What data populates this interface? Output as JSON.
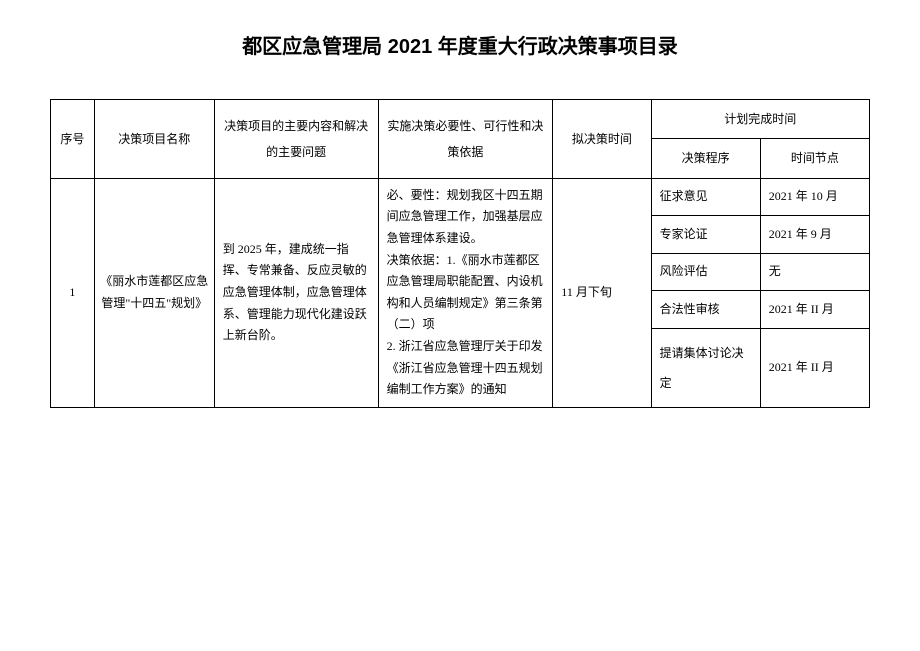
{
  "title": "都区应急管理局 2021 年度重大行政决策事项目录",
  "headers": {
    "seq": "序号",
    "name": "决策项目名称",
    "content": "决策项目的主要内容和解决的主要问题",
    "basis": "实施决策必要性、可行性和决策依据",
    "plan_time": "拟决策时间",
    "complete_time": "计划完成时间",
    "procedure": "决策程序",
    "time_node": "时间节点"
  },
  "row": {
    "seq": "1",
    "name": "《丽水市莲都区应急管理\"十四五\"规划》",
    "content": "到 2025 年，建成统一指挥、专常兼备、反应灵敏的应急管理体制，应急管理体系、管理能力现代化建设跃上新台阶。",
    "basis": "必、要性：规划我区十四五期间应急管理工作，加强基层应急管理体系建设。\n决策依据：1.《丽水市莲都区应急管理局职能配置、内设机构和人员编制规定》第三条第（二）项\n2. 浙江省应急管理厅关于印发《浙江省应急管理十四五规划编制工作方案》的通知",
    "plan_time": "11 月下旬",
    "steps": [
      {
        "proc": "征求意见",
        "node": "2021 年 10 月"
      },
      {
        "proc": "专家论证",
        "node": "2021 年 9 月"
      },
      {
        "proc": "风险评估",
        "node": "无"
      },
      {
        "proc": "合法性审核",
        "node": "2021 年 II 月"
      },
      {
        "proc": "提请集体讨论决定",
        "node": "2021 年 II 月"
      }
    ]
  }
}
